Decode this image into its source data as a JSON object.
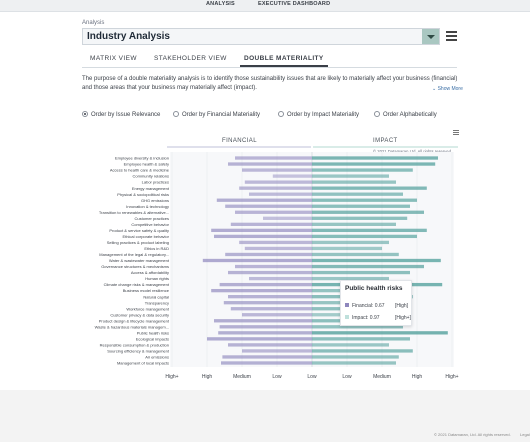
{
  "topnav": {
    "analysis": "ANALYSIS",
    "dashboard": "EXECUTIVE DASHBOARD"
  },
  "analysis": {
    "label": "Analysis",
    "selected": "Industry Analysis"
  },
  "tabs": [
    "MATRIX VIEW",
    "STAKEHOLDER VIEW",
    "DOUBLE MATERIALITY"
  ],
  "description": "The purpose of a double materiality analysis is to identify those sustainability issues that are likely to materially affect your business (financial) and those areas that your business may materially affect (impact).",
  "show_more": "Show More",
  "radios": [
    "Order by Issue Relevance",
    "Order by Financial Materiality",
    "Order by Impact Materiality",
    "Order Alphabetically"
  ],
  "headers": {
    "financial": "FINANCIAL",
    "impact": "IMPACT"
  },
  "copyright_small": "© 2021 Datamaran Ltd. All rights reserved",
  "tooltip": {
    "title": "Public health risks",
    "financial": "Financial: 0.67",
    "financial_level": "[High]",
    "impact": "Impact: 0.97",
    "impact_level": "[High+]"
  },
  "footer": "© 2021 Datamaran, Ltd. All rights reserved.",
  "footer_link": "Legal",
  "colors": {
    "financial": "#8e87bd",
    "impact": "#4f9e9a",
    "accent": "#a9c7c1"
  },
  "chart_data": {
    "type": "bar",
    "x_tick_labels": [
      "High+",
      "High",
      "Medium",
      "Low",
      "Low",
      "Low",
      "Medium",
      "High",
      "High+"
    ],
    "categories": [
      "Employee diversity & inclusion",
      "Employee health & safety",
      "Access to health care & medicine",
      "Community relations",
      "Labor practices",
      "Energy management",
      "Physical & sociopolitical risks",
      "GHG emissions",
      "Innovation & technology",
      "Transition to renewables & alternative...",
      "Customer practices",
      "Competitive behavior",
      "Product & service safety & quality",
      "Ethical corporate behavior",
      "Selling practices & product labeling",
      "Ethics in R&D",
      "Management of the legal & regulatory...",
      "Water & wastewater management",
      "Governance structures & mechanisms",
      "Access & affordability",
      "Human rights",
      "Climate change risks & management",
      "Business model resilience",
      "Natural capital",
      "Transparency",
      "Workforce management",
      "Customer privacy & data security",
      "Product design & lifecycle management",
      "Waste & hazardous materials managem...",
      "Public health risks",
      "Ecological impacts",
      "Responsible consumption & production",
      "Sourcing efficiency & management",
      "Air emissions",
      "Management of local impacts"
    ],
    "series": [
      {
        "name": "Financial",
        "values": [
          0.55,
          0.6,
          0.5,
          0.28,
          0.48,
          0.52,
          0.45,
          0.68,
          0.62,
          0.55,
          0.35,
          0.58,
          0.72,
          0.7,
          0.52,
          0.48,
          0.62,
          0.78,
          0.55,
          0.6,
          0.45,
          0.66,
          0.72,
          0.6,
          0.63,
          0.58,
          0.5,
          0.7,
          0.66,
          0.67,
          0.75,
          0.6,
          0.5,
          0.64,
          0.65
        ]
      },
      {
        "name": "Impact",
        "values": [
          0.9,
          0.88,
          0.72,
          0.55,
          0.6,
          0.82,
          0.65,
          0.75,
          0.7,
          0.8,
          0.68,
          0.6,
          0.82,
          0.75,
          0.55,
          0.5,
          0.62,
          0.92,
          0.8,
          0.7,
          0.55,
          0.93,
          0.62,
          0.72,
          0.6,
          0.68,
          0.45,
          0.7,
          0.65,
          0.97,
          0.7,
          0.55,
          0.72,
          0.62,
          0.6
        ]
      }
    ]
  }
}
